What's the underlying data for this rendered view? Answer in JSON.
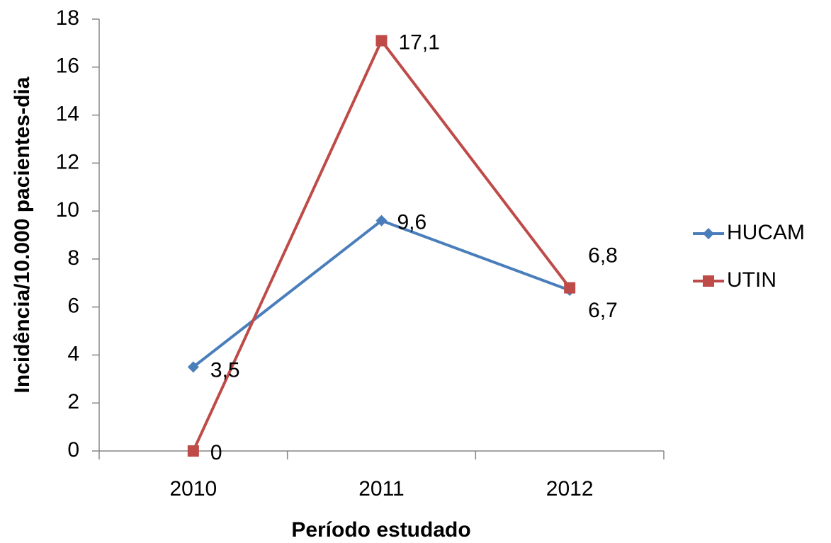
{
  "chart_data": {
    "type": "line",
    "categories": [
      "2010",
      "2011",
      "2012"
    ],
    "series": [
      {
        "name": "HUCAM",
        "color": "#4a7ebb",
        "marker": "diamond",
        "values": [
          3.5,
          9.6,
          6.7
        ],
        "value_labels": [
          "3,5",
          "9,6",
          "6,7"
        ]
      },
      {
        "name": "UTIN",
        "color": "#be4b48",
        "marker": "square",
        "values": [
          0,
          17.1,
          6.8
        ],
        "value_labels": [
          "0",
          "17,1",
          "6,8"
        ]
      }
    ],
    "ylim": [
      0,
      18
    ],
    "yticks": [
      0,
      2,
      4,
      6,
      8,
      10,
      12,
      14,
      16,
      18
    ],
    "ylabel": "Incidência/10.000 pacientes-dia",
    "xlabel": "Período estudado",
    "legend": "right"
  }
}
